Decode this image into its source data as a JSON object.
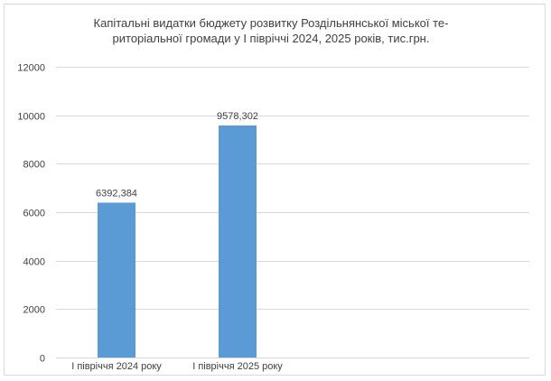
{
  "chart_data": {
    "type": "bar",
    "title_line1": "Капітальні видатки бюджету розвитку Роздільнянської міської те-",
    "title_line2": "риторіальної громади у І півріччі 2024, 2025 років, тис.грн.",
    "categories": [
      "І півріччя 2024 року",
      "І півріччя 2025 року"
    ],
    "values": [
      6392.384,
      9578.302
    ],
    "data_labels": [
      "6392,384",
      "9578,302"
    ],
    "ylim": [
      0,
      12000
    ],
    "yticks": [
      0,
      2000,
      4000,
      6000,
      8000,
      10000,
      12000
    ],
    "ytick_labels": [
      "0",
      "2000",
      "4000",
      "6000",
      "8000",
      "10000",
      "12000"
    ],
    "grid": true,
    "bar_color": "#5b9bd5",
    "xlabel": "",
    "ylabel": ""
  }
}
